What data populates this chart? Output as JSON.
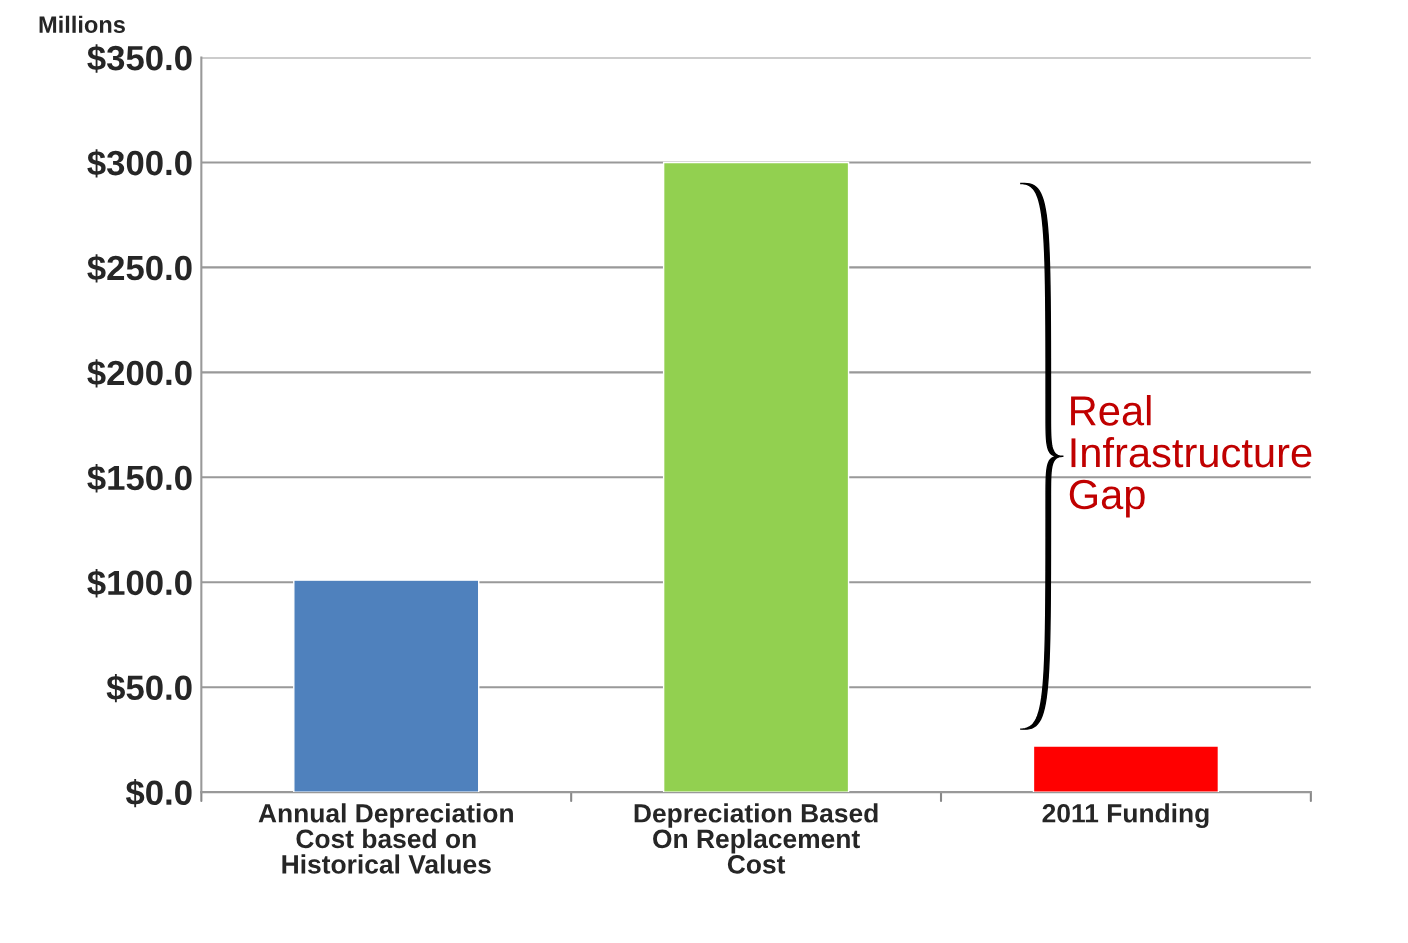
{
  "chart_data": {
    "type": "bar",
    "categories": [
      "Annual Depreciation\nCost based on\nHistorical Values",
      "Depreciation Based\nOn Replacement\nCost",
      "2011 Funding"
    ],
    "values": [
      101,
      300,
      22
    ],
    "colors": [
      "#4f81bd",
      "#92d050",
      "#ff0000"
    ],
    "ylabel": "Millions",
    "ylim": [
      0,
      350
    ],
    "yticks": [
      {
        "value": 0,
        "label": "$0.0"
      },
      {
        "value": 50,
        "label": "$50.0"
      },
      {
        "value": 100,
        "label": "$100.0"
      },
      {
        "value": 150,
        "label": "$150.0"
      },
      {
        "value": 200,
        "label": "$200.0"
      },
      {
        "value": 250,
        "label": "$250.0"
      },
      {
        "value": 300,
        "label": "$300.0"
      },
      {
        "value": 350,
        "label": "$350.0"
      }
    ],
    "grid": "y",
    "annotations": [
      "Real\nInfrastructure\nGap"
    ]
  }
}
